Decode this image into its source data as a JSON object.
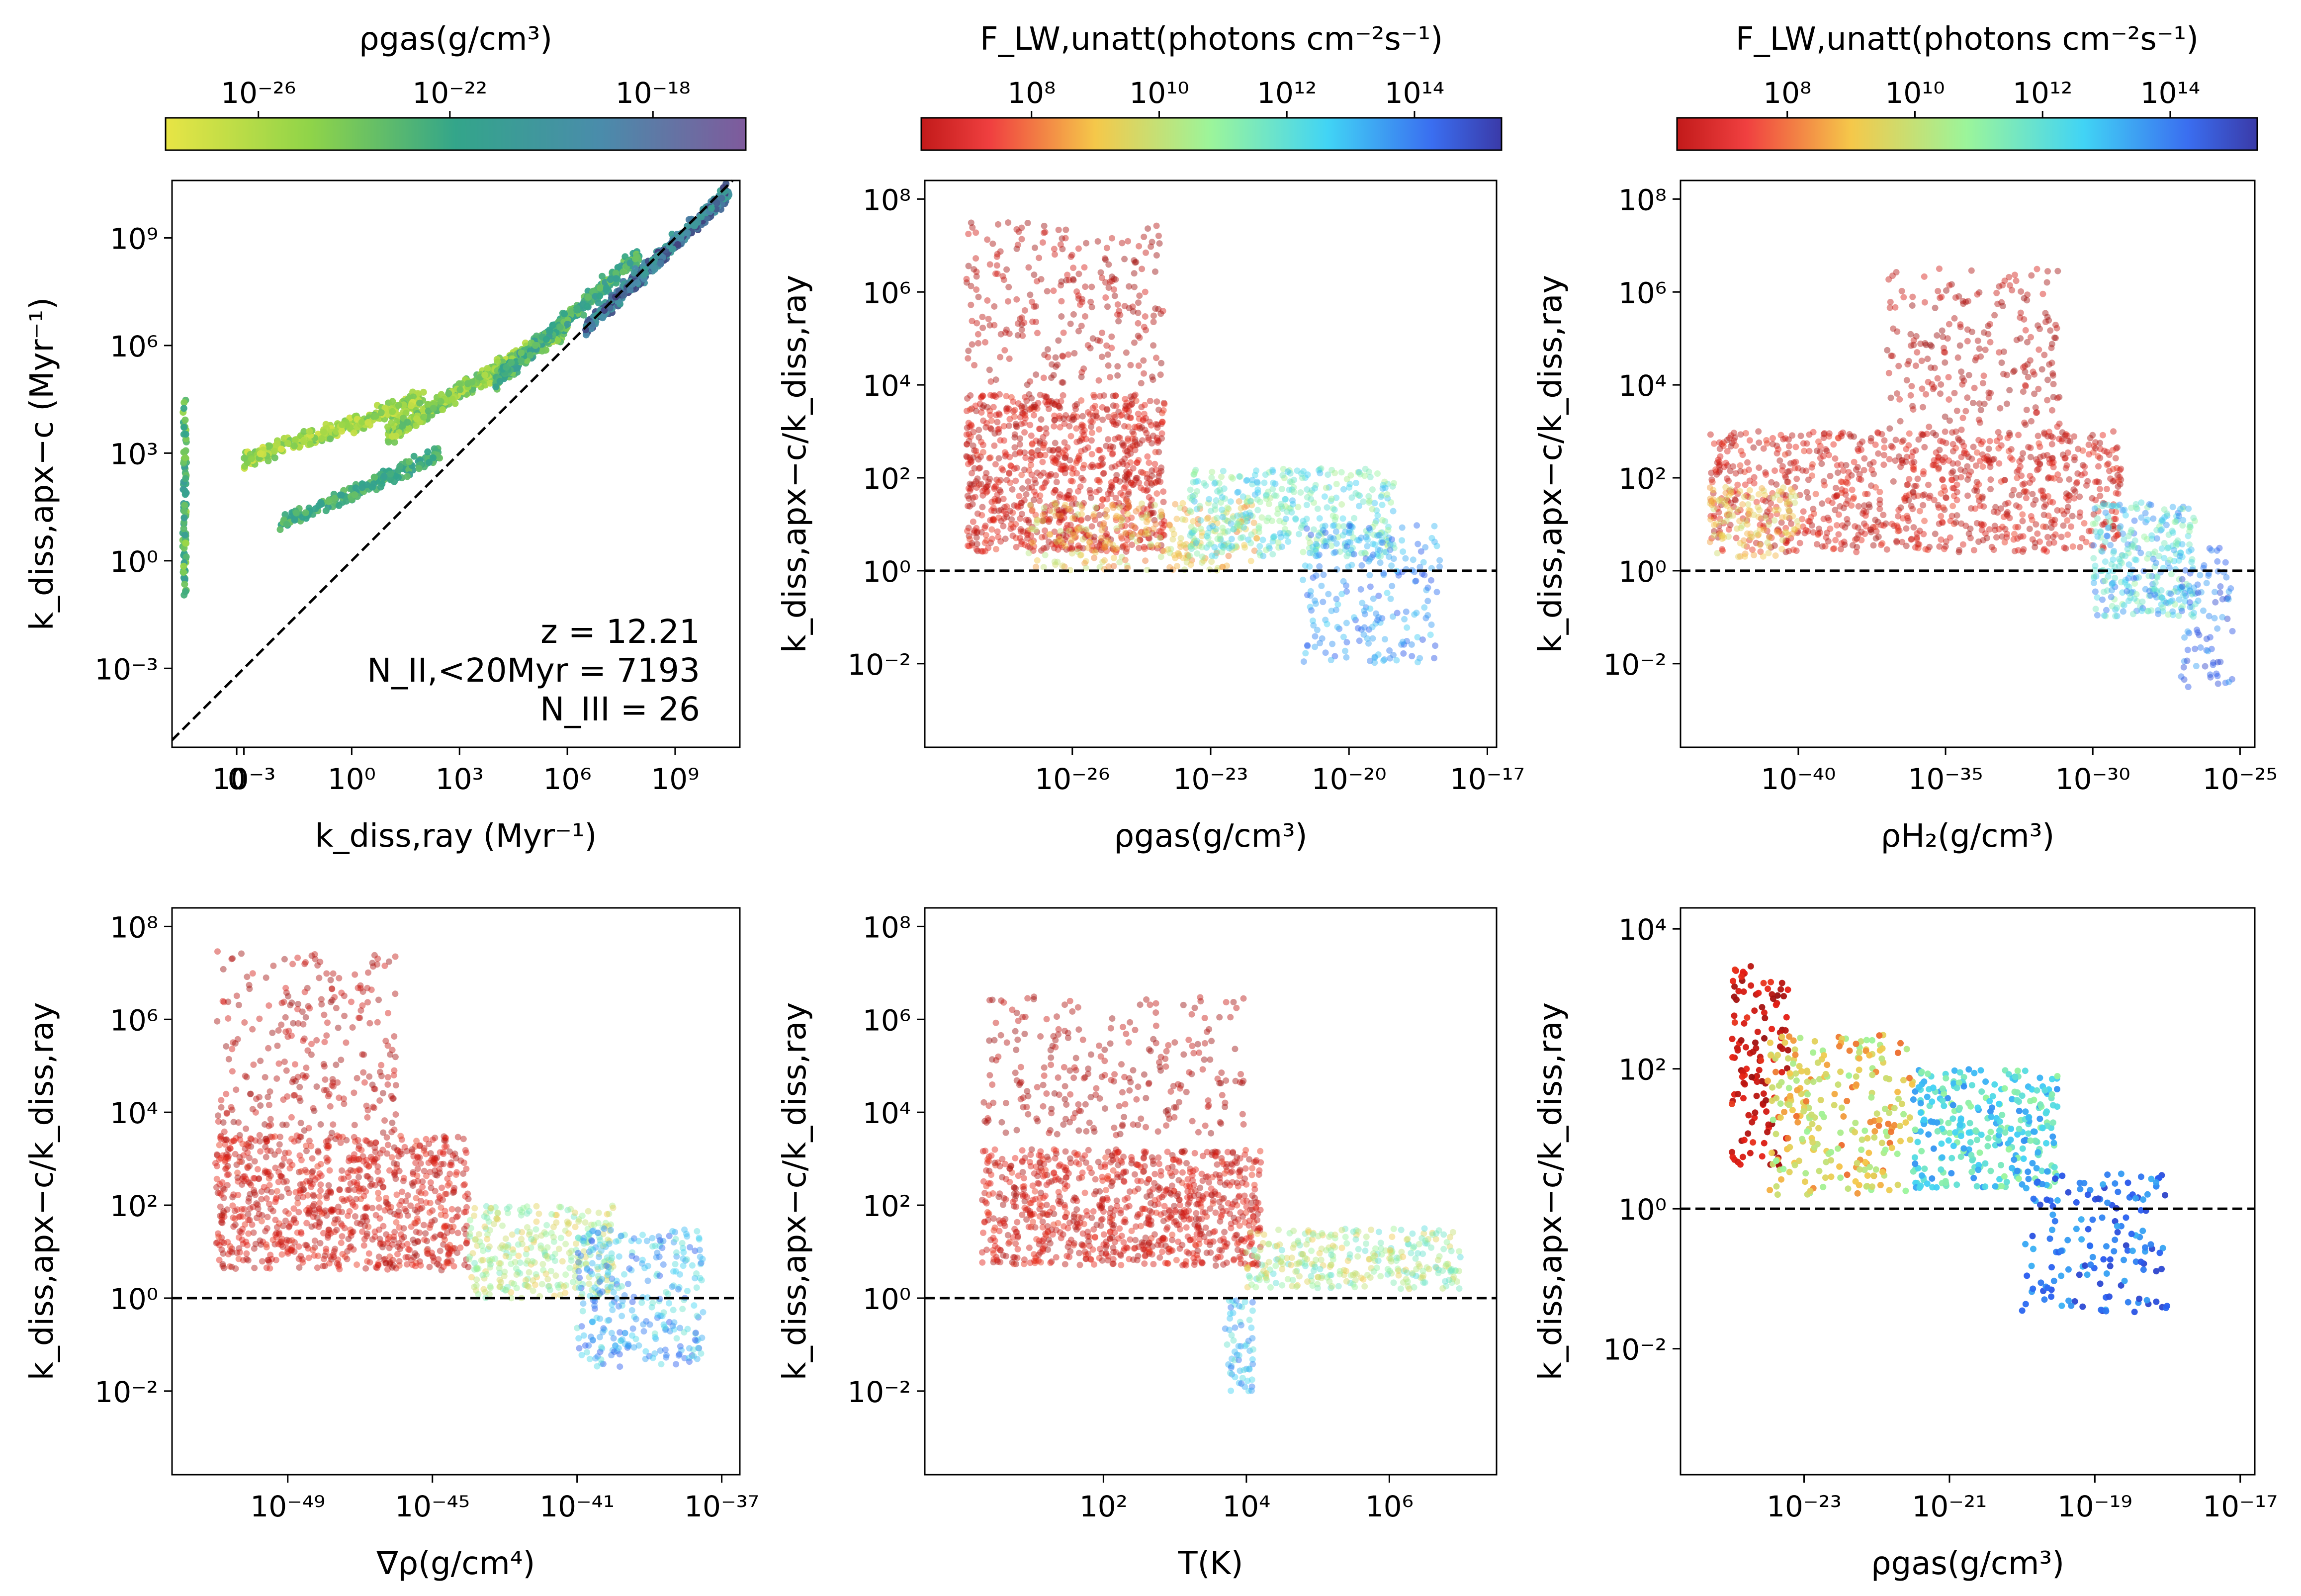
{
  "figure": {
    "colorbars": [
      {
        "title": "ρgas(g/cm³)",
        "cmap": "viridis_r",
        "ticks": [
          "10⁻²⁶",
          "10⁻²²",
          "10⁻¹⁸"
        ]
      },
      {
        "title": "F_LW,unatt(photons cm⁻²s⁻¹)",
        "cmap": "jet_r",
        "ticks": [
          "10⁸",
          "10¹⁰",
          "10¹²",
          "10¹⁴"
        ]
      },
      {
        "title": "F_LW,unatt(photons cm⁻²s⁻¹)",
        "cmap": "jet_r",
        "ticks": [
          "10⁸",
          "10¹⁰",
          "10¹²",
          "10¹⁴"
        ]
      }
    ],
    "colors": {
      "axis": "#000000",
      "dash": "#000000"
    }
  },
  "chart_data": [
    {
      "type": "scatter",
      "panel": "top-left",
      "xlabel": "k_diss,ray (Myr⁻¹)",
      "ylabel": "k_diss,apx−c (Myr⁻¹)",
      "xlim": [
        -5,
        10.8
      ],
      "ylim": [
        -5.2,
        10.6
      ],
      "xticks": [
        {
          "v": -3.2,
          "t": "0"
        },
        {
          "v": -3,
          "t": "10⁻³"
        },
        {
          "v": 0,
          "t": "10⁰"
        },
        {
          "v": 3,
          "t": "10³"
        },
        {
          "v": 6,
          "t": "10⁶"
        },
        {
          "v": 9,
          "t": "10⁹"
        }
      ],
      "yticks": [
        {
          "v": -3,
          "t": "10⁻³"
        },
        {
          "v": 0,
          "t": "10⁰"
        },
        {
          "v": 3,
          "t": "10³"
        },
        {
          "v": 6,
          "t": "10⁶"
        },
        {
          "v": 9,
          "t": "10⁹"
        }
      ],
      "reference_line": "y = x",
      "annotations": [
        "z = 12.21",
        "N_II,<20Myr = 7193",
        "N_III = 26"
      ],
      "colorbar": "ρgas",
      "clusters": [
        {
          "x": [
            -4.7,
            -4.6
          ],
          "y": [
            -1,
            4.5
          ],
          "c": [
            0.2,
            0.6
          ],
          "n": 90
        },
        {
          "x": [
            -3,
            2
          ],
          "y": [
            2.8,
            4.5
          ],
          "c": [
            0.05,
            0.35
          ],
          "n": 300
        },
        {
          "x": [
            -2,
            2.5
          ],
          "y": [
            1,
            3
          ],
          "c": [
            0.35,
            0.55
          ],
          "n": 180
        },
        {
          "x": [
            1,
            6
          ],
          "y": [
            3.5,
            6.5
          ],
          "c": [
            0.1,
            0.4
          ],
          "n": 450
        },
        {
          "x": [
            4,
            8
          ],
          "y": [
            5,
            8.5
          ],
          "c": [
            0.3,
            0.6
          ],
          "n": 400
        },
        {
          "x": [
            6.5,
            10.5
          ],
          "y": [
            6.5,
            10.3
          ],
          "c": [
            0.55,
            0.95
          ],
          "n": 500
        }
      ]
    },
    {
      "type": "scatter",
      "panel": "top-middle",
      "xlabel": "ρgas(g/cm³)",
      "ylabel": "k_diss,apx−c/k_diss,ray",
      "xlim": [
        -29.2,
        -16.8
      ],
      "ylim": [
        -3.8,
        8.4
      ],
      "xticks": [
        {
          "v": -26,
          "t": "10⁻²⁶"
        },
        {
          "v": -23,
          "t": "10⁻²³"
        },
        {
          "v": -20,
          "t": "10⁻²⁰"
        },
        {
          "v": -17,
          "t": "10⁻¹⁷"
        }
      ],
      "yticks": [
        {
          "v": -2,
          "t": "10⁻²"
        },
        {
          "v": 0,
          "t": "10⁰"
        },
        {
          "v": 2,
          "t": "10²"
        },
        {
          "v": 4,
          "t": "10⁴"
        },
        {
          "v": 6,
          "t": "10⁶"
        },
        {
          "v": 8,
          "t": "10⁸"
        }
      ],
      "reference_line": "y = 1",
      "colorbar": "F_LW,unatt",
      "clusters": [
        {
          "x": [
            -28.3,
            -24
          ],
          "y": [
            4,
            7.5
          ],
          "c": [
            0.0,
            0.1
          ],
          "n": 250
        },
        {
          "x": [
            -28.3,
            -24
          ],
          "y": [
            0.4,
            3.8
          ],
          "c": [
            0.02,
            0.15
          ],
          "n": 900
        },
        {
          "x": [
            -27,
            -22
          ],
          "y": [
            0,
            1.5
          ],
          "c": [
            0.2,
            0.45
          ],
          "n": 250
        },
        {
          "x": [
            -23.5,
            -19
          ],
          "y": [
            0.3,
            2.2
          ],
          "c": [
            0.45,
            0.75
          ],
          "n": 400
        },
        {
          "x": [
            -21,
            -18
          ],
          "y": [
            -2,
            1
          ],
          "c": [
            0.7,
            0.9
          ],
          "n": 200
        }
      ]
    },
    {
      "type": "scatter",
      "panel": "top-right",
      "xlabel": "ρH₂(g/cm³)",
      "ylabel": "k_diss,apx−c/k_diss,ray",
      "xlim": [
        -44,
        -24.5
      ],
      "ylim": [
        -3.8,
        8.4
      ],
      "xticks": [
        {
          "v": -40,
          "t": "10⁻⁴⁰"
        },
        {
          "v": -35,
          "t": "10⁻³⁵"
        },
        {
          "v": -30,
          "t": "10⁻³⁰"
        },
        {
          "v": -25,
          "t": "10⁻²⁵"
        }
      ],
      "yticks": [
        {
          "v": -2,
          "t": "10⁻²"
        },
        {
          "v": 0,
          "t": "10⁰"
        },
        {
          "v": 2,
          "t": "10²"
        },
        {
          "v": 4,
          "t": "10⁴"
        },
        {
          "v": 6,
          "t": "10⁶"
        },
        {
          "v": 8,
          "t": "10⁸"
        }
      ],
      "reference_line": "y = 1",
      "colorbar": "F_LW,unatt",
      "clusters": [
        {
          "x": [
            -37,
            -31
          ],
          "y": [
            3,
            6.5
          ],
          "c": [
            0.0,
            0.1
          ],
          "n": 220
        },
        {
          "x": [
            -43,
            -29
          ],
          "y": [
            0.4,
            3
          ],
          "c": [
            0.02,
            0.15
          ],
          "n": 900
        },
        {
          "x": [
            -43,
            -40
          ],
          "y": [
            0.3,
            1.8
          ],
          "c": [
            0.25,
            0.4
          ],
          "n": 120
        },
        {
          "x": [
            -30,
            -26.5
          ],
          "y": [
            -1,
            1.5
          ],
          "c": [
            0.5,
            0.85
          ],
          "n": 300
        },
        {
          "x": [
            -27,
            -25.2
          ],
          "y": [
            -2.5,
            0.5
          ],
          "c": [
            0.75,
            0.95
          ],
          "n": 80
        }
      ]
    },
    {
      "type": "scatter",
      "panel": "bottom-left",
      "xlabel": "∇ρ(g/cm⁴)",
      "ylabel": "k_diss,apx−c/k_diss,ray",
      "xlim": [
        -52.2,
        -36.5
      ],
      "ylim": [
        -3.8,
        8.4
      ],
      "xticks": [
        {
          "v": -49,
          "t": "10⁻⁴⁹"
        },
        {
          "v": -45,
          "t": "10⁻⁴⁵"
        },
        {
          "v": -41,
          "t": "10⁻⁴¹"
        },
        {
          "v": -37,
          "t": "10⁻³⁷"
        }
      ],
      "yticks": [
        {
          "v": -2,
          "t": "10⁻²"
        },
        {
          "v": 0,
          "t": "10⁰"
        },
        {
          "v": 2,
          "t": "10²"
        },
        {
          "v": 4,
          "t": "10⁴"
        },
        {
          "v": 6,
          "t": "10⁶"
        },
        {
          "v": 8,
          "t": "10⁸"
        }
      ],
      "reference_line": "y = 1",
      "colorbar": "F_LW,unatt",
      "clusters": [
        {
          "x": [
            -51,
            -46
          ],
          "y": [
            3.5,
            7.5
          ],
          "c": [
            0.0,
            0.1
          ],
          "n": 250
        },
        {
          "x": [
            -51,
            -44
          ],
          "y": [
            0.6,
            3.5
          ],
          "c": [
            0.02,
            0.15
          ],
          "n": 900
        },
        {
          "x": [
            -44,
            -40
          ],
          "y": [
            0,
            2
          ],
          "c": [
            0.3,
            0.6
          ],
          "n": 300
        },
        {
          "x": [
            -41,
            -37.5
          ],
          "y": [
            -1.5,
            1.5
          ],
          "c": [
            0.6,
            0.9
          ],
          "n": 300
        }
      ]
    },
    {
      "type": "scatter",
      "panel": "bottom-middle",
      "xlabel": "T(K)",
      "ylabel": "k_diss,apx−c/k_diss,ray",
      "xlim": [
        -0.5,
        7.5
      ],
      "ylim": [
        -3.8,
        8.4
      ],
      "xticks": [
        {
          "v": 2,
          "t": "10²"
        },
        {
          "v": 4,
          "t": "10⁴"
        },
        {
          "v": 6,
          "t": "10⁶"
        }
      ],
      "yticks": [
        {
          "v": -2,
          "t": "10⁻²"
        },
        {
          "v": 0,
          "t": "10⁰"
        },
        {
          "v": 2,
          "t": "10²"
        },
        {
          "v": 4,
          "t": "10⁴"
        },
        {
          "v": 6,
          "t": "10⁶"
        },
        {
          "v": 8,
          "t": "10⁸"
        }
      ],
      "reference_line": "y = 1",
      "colorbar": "F_LW,unatt",
      "clusters": [
        {
          "x": [
            0.3,
            4
          ],
          "y": [
            3.5,
            6.5
          ],
          "c": [
            0.0,
            0.08
          ],
          "n": 250
        },
        {
          "x": [
            0.3,
            4.2
          ],
          "y": [
            0.7,
            3.2
          ],
          "c": [
            0.02,
            0.15
          ],
          "n": 900
        },
        {
          "x": [
            4,
            7
          ],
          "y": [
            0.2,
            1.5
          ],
          "c": [
            0.3,
            0.65
          ],
          "n": 300
        },
        {
          "x": [
            3.7,
            4.1
          ],
          "y": [
            -2,
            0
          ],
          "c": [
            0.6,
            0.85
          ],
          "n": 60
        }
      ]
    },
    {
      "type": "scatter",
      "panel": "bottom-right",
      "xlabel": "ρgas(g/cm³)",
      "ylabel": "k_diss,apx−c/k_diss,ray",
      "xlim": [
        -24.7,
        -16.8
      ],
      "ylim": [
        -3.8,
        4.3
      ],
      "xticks": [
        {
          "v": -23,
          "t": "10⁻²³"
        },
        {
          "v": -21,
          "t": "10⁻²¹"
        },
        {
          "v": -19,
          "t": "10⁻¹⁹"
        },
        {
          "v": -17,
          "t": "10⁻¹⁷"
        }
      ],
      "yticks": [
        {
          "v": -2,
          "t": "10⁻²"
        },
        {
          "v": 0,
          "t": "10⁰"
        },
        {
          "v": 2,
          "t": "10²"
        },
        {
          "v": 4,
          "t": "10⁴"
        }
      ],
      "reference_line": "y = 1",
      "colorbar": "F_LW,unatt",
      "clusters": [
        {
          "x": [
            -24,
            -23.2
          ],
          "y": [
            0.6,
            3.5
          ],
          "c": [
            0.0,
            0.15
          ],
          "n": 120
        },
        {
          "x": [
            -23.5,
            -21.5
          ],
          "y": [
            0.2,
            2.5
          ],
          "c": [
            0.2,
            0.5
          ],
          "n": 250
        },
        {
          "x": [
            -21.5,
            -19.5
          ],
          "y": [
            0.3,
            2
          ],
          "c": [
            0.5,
            0.8
          ],
          "n": 300
        },
        {
          "x": [
            -20,
            -18
          ],
          "y": [
            -1.5,
            0.5
          ],
          "c": [
            0.75,
            0.95
          ],
          "n": 150
        }
      ]
    }
  ]
}
